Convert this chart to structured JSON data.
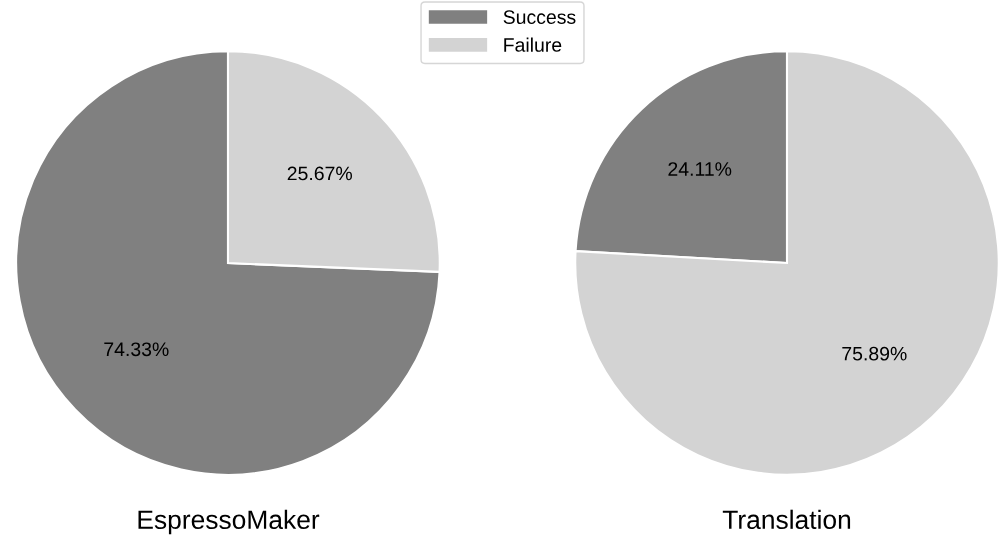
{
  "chart_data": [
    {
      "type": "pie",
      "title": "EspressoMaker",
      "categories": [
        "Success",
        "Failure"
      ],
      "values": [
        74.33,
        25.67
      ],
      "colors": [
        "#808080",
        "#d3d3d3"
      ],
      "value_labels": [
        "74.33%",
        "25.67%"
      ],
      "legend": "top"
    },
    {
      "type": "pie",
      "title": "Translation",
      "categories": [
        null,
        null
      ],
      "values": [
        24.11,
        75.89
      ],
      "colors": [
        "#808080",
        "#d3d3d3"
      ],
      "value_labels": [
        "24.11%",
        "75.89%"
      ]
    }
  ]
}
